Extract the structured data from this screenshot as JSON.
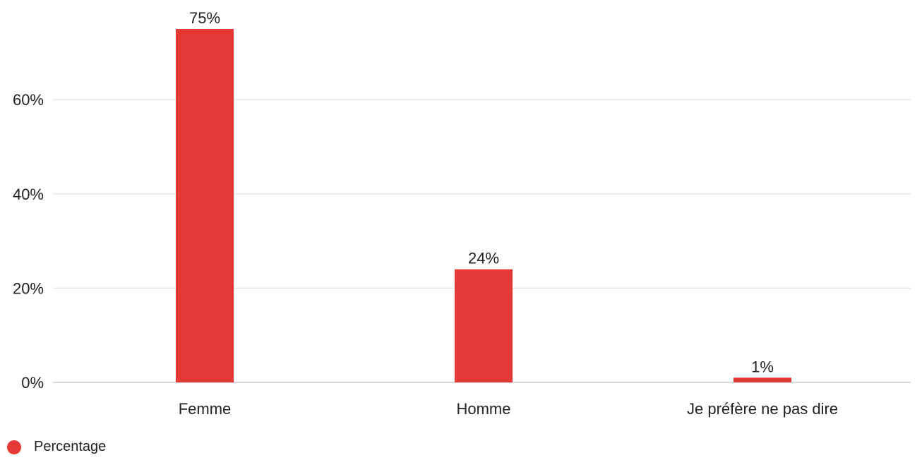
{
  "chart_data": {
    "type": "bar",
    "categories": [
      "Femme",
      "Homme",
      "Je préfère ne pas dire"
    ],
    "series": [
      {
        "name": "Percentage",
        "values": [
          75,
          24,
          1
        ],
        "color": "#e53935"
      }
    ],
    "data_labels": [
      "75%",
      "24%",
      "1%"
    ],
    "yticks": [
      0,
      20,
      40,
      60
    ],
    "ytick_labels": [
      "0%",
      "20%",
      "40%",
      "60%"
    ],
    "ylim": [
      0,
      75
    ],
    "grid": true,
    "legend_position": "bottom-left"
  }
}
